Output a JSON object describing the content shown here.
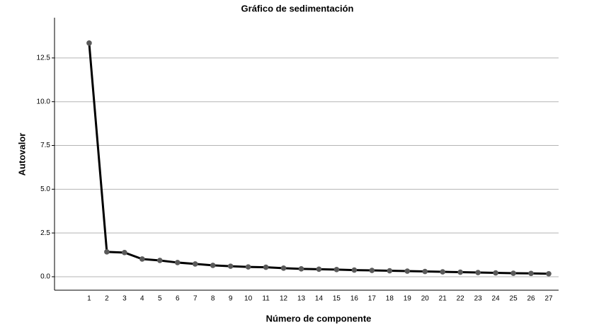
{
  "chart_data": {
    "type": "line",
    "title": "Gráfico de sedimentación",
    "x_label": "Número de componente",
    "y_label": "Autovalor",
    "x": [
      1,
      2,
      3,
      4,
      5,
      6,
      7,
      8,
      9,
      10,
      11,
      12,
      13,
      14,
      15,
      16,
      17,
      18,
      19,
      20,
      21,
      22,
      23,
      24,
      25,
      26,
      27
    ],
    "series": [
      {
        "name": "Autovalor",
        "color": "#000000",
        "marker_color": "#5a5a5a",
        "values": [
          13.35,
          1.42,
          1.38,
          1.01,
          0.93,
          0.81,
          0.73,
          0.65,
          0.6,
          0.56,
          0.54,
          0.49,
          0.45,
          0.43,
          0.41,
          0.38,
          0.36,
          0.34,
          0.32,
          0.3,
          0.28,
          0.26,
          0.24,
          0.22,
          0.2,
          0.19,
          0.17
        ]
      }
    ],
    "xlim": [
      -0.96,
      27.56
    ],
    "xticks": [
      1,
      2,
      3,
      4,
      5,
      6,
      7,
      8,
      9,
      10,
      11,
      12,
      13,
      14,
      15,
      16,
      17,
      18,
      19,
      20,
      21,
      22,
      23,
      24,
      25,
      26,
      27
    ],
    "ylim": [
      -0.77,
      14.8
    ],
    "yticks": [
      {
        "value": 0,
        "label": "0.0"
      },
      2.5,
      {
        "value": 5,
        "label": "5.0"
      },
      7.5,
      {
        "value": 10,
        "label": "10.0"
      },
      12.5
    ],
    "grid": true
  }
}
